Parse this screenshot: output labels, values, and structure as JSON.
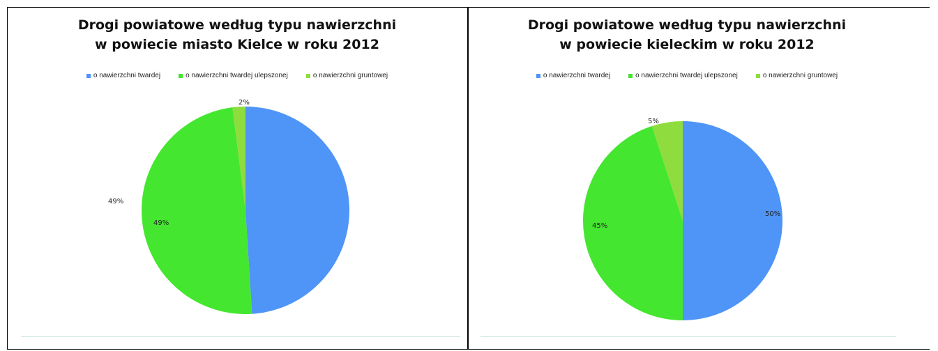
{
  "chart_data": [
    {
      "type": "pie",
      "title": [
        "Drogi powiatowe według typu nawierzchni",
        "w powiecie miasto Kielce w roku 2012"
      ],
      "legend_position": "top",
      "categories": [
        "o nawierzchni twardej",
        "o nawierzchni twardej ulepszonej",
        "o nawierzchni gruntowej"
      ],
      "values": [
        49,
        49,
        2
      ],
      "labels": [
        "49%",
        "49%",
        "2%"
      ],
      "colors": [
        "#4f94f7",
        "#44e62f",
        "#8fdc3e"
      ]
    },
    {
      "type": "pie",
      "title": [
        "Drogi powiatowe według typu nawierzchni",
        "w powiecie kieleckim w roku 2012"
      ],
      "legend_position": "top",
      "categories": [
        "o nawierzchni twardej",
        "o nawierzchni twardej ulepszonej",
        "o nawierzchni gruntowej"
      ],
      "values": [
        50,
        45,
        5
      ],
      "labels": [
        "50%",
        "45%",
        "5%"
      ],
      "colors": [
        "#4f94f7",
        "#44e62f",
        "#8fdc3e"
      ]
    }
  ]
}
